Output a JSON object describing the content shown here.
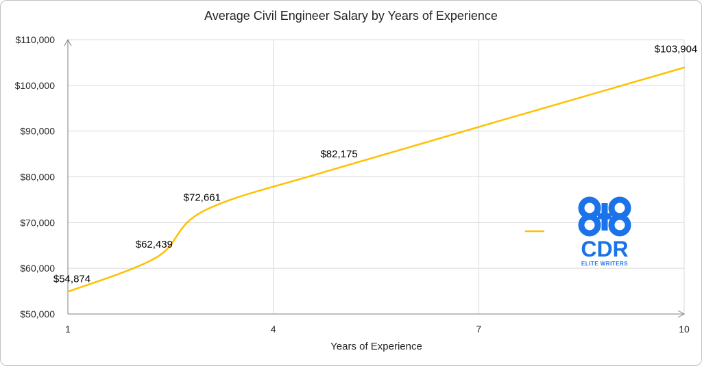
{
  "colors": {
    "series": "#FFC000",
    "logo": "#1a73e8",
    "text": "#262626",
    "grid": "#d9d9d9"
  },
  "chart_data": {
    "type": "line",
    "title": "Average Civil Engineer Salary by Years of Experience",
    "xlabel": "Years of Experience",
    "ylabel": "",
    "xlim": [
      1,
      10
    ],
    "ylim": [
      50000,
      110000
    ],
    "x_ticks": [
      1,
      4,
      7,
      10
    ],
    "x_tick_labels": [
      "1",
      "4",
      "7",
      "10"
    ],
    "y_ticks": [
      50000,
      60000,
      70000,
      80000,
      90000,
      100000,
      110000
    ],
    "y_tick_labels": [
      "$50,000",
      "$60,000",
      "$70,000",
      "$80,000",
      "$90,000",
      "$100,000",
      "$110,000"
    ],
    "grid": true,
    "legend": "right",
    "series": [
      {
        "x": [
          1,
          2.3,
          3,
          5,
          10
        ],
        "values": [
          54874,
          62439,
          72661,
          82175,
          103904
        ],
        "labels": [
          "$54,874",
          "$62,439",
          "$72,661",
          "$82,175",
          "$103,904"
        ],
        "smooth": true
      }
    ]
  },
  "logo": {
    "icon": "cdr-logo-icon",
    "text": "CDR",
    "subtext": "ELITE WRITERS"
  }
}
